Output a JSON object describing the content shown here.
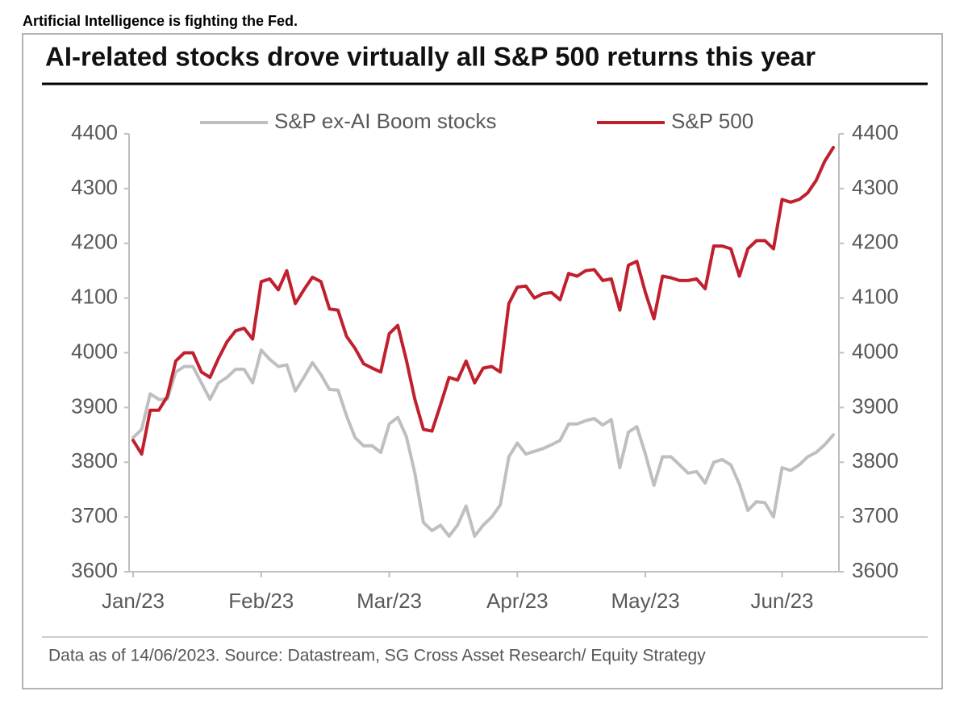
{
  "header": "Artificial Intelligence is fighting the Fed.",
  "chart_data": {
    "type": "line",
    "title": "AI-related stocks drove virtually all S&P 500 returns this year",
    "source": "Data as of 14/06/2023. Source: Datastream, SG Cross Asset Research/ Equity Strategy",
    "categories": [
      "Jan/23",
      null,
      null,
      null,
      null,
      null,
      null,
      null,
      null,
      null,
      null,
      null,
      null,
      null,
      null,
      "Feb/23",
      null,
      null,
      null,
      null,
      null,
      null,
      null,
      null,
      null,
      null,
      null,
      null,
      null,
      null,
      "Mar/23",
      null,
      null,
      null,
      null,
      null,
      null,
      null,
      null,
      null,
      null,
      null,
      null,
      null,
      null,
      "Apr/23",
      null,
      null,
      null,
      null,
      null,
      null,
      null,
      null,
      null,
      null,
      null,
      null,
      null,
      null,
      "May/23",
      null,
      null,
      null,
      null,
      null,
      null,
      null,
      null,
      null,
      null,
      null,
      null,
      null,
      null,
      null,
      "Jun/23",
      null,
      null,
      null,
      null,
      null,
      null
    ],
    "series": [
      {
        "name": "S&P ex-AI Boom stocks",
        "color": "#bfbfbf",
        "values": [
          3845,
          3860,
          3925,
          3915,
          3915,
          3965,
          3975,
          3975,
          3945,
          3915,
          3945,
          3955,
          3970,
          3970,
          3945,
          4005,
          3988,
          3975,
          3978,
          3930,
          3955,
          3982,
          3960,
          3933,
          3932,
          3885,
          3845,
          3830,
          3830,
          3818,
          3870,
          3882,
          3847,
          3780,
          3690,
          3675,
          3685,
          3665,
          3685,
          3720,
          3665,
          3685,
          3700,
          3722,
          3810,
          3835,
          3815,
          3820,
          3825,
          3832,
          3840,
          3870,
          3870,
          3876,
          3880,
          3868,
          3878,
          3790,
          3855,
          3865,
          3815,
          3758,
          3810,
          3810,
          3795,
          3780,
          3783,
          3762,
          3800,
          3805,
          3795,
          3760,
          3712,
          3728,
          3726,
          3700,
          3790,
          3785,
          3795,
          3810,
          3818,
          3832,
          3850
        ]
      },
      {
        "name": "S&P 500",
        "color": "#c0202e",
        "values": [
          3840,
          3815,
          3895,
          3895,
          3920,
          3985,
          4000,
          4000,
          3965,
          3955,
          3990,
          4020,
          4040,
          4045,
          4025,
          4130,
          4135,
          4115,
          4150,
          4090,
          4115,
          4138,
          4130,
          4080,
          4078,
          4030,
          4008,
          3980,
          3972,
          3965,
          4035,
          4050,
          3987,
          3915,
          3860,
          3857,
          3905,
          3955,
          3950,
          3985,
          3945,
          3972,
          3975,
          3965,
          4090,
          4120,
          4122,
          4100,
          4108,
          4110,
          4097,
          4145,
          4140,
          4150,
          4152,
          4132,
          4135,
          4078,
          4160,
          4167,
          4110,
          4062,
          4140,
          4137,
          4132,
          4132,
          4135,
          4117,
          4195,
          4195,
          4190,
          4140,
          4190,
          4205,
          4205,
          4190,
          4280,
          4275,
          4280,
          4292,
          4315,
          4350,
          4375
        ]
      }
    ],
    "ylim": [
      3600,
      4400
    ],
    "yticks": [
      3600,
      3700,
      3800,
      3900,
      4000,
      4100,
      4200,
      4300,
      4400
    ],
    "y2lim": [
      3600,
      4400
    ],
    "y2ticks": [
      3600,
      3700,
      3800,
      3900,
      4000,
      4100,
      4200,
      4300,
      4400
    ],
    "grid": false,
    "legend": "top"
  }
}
